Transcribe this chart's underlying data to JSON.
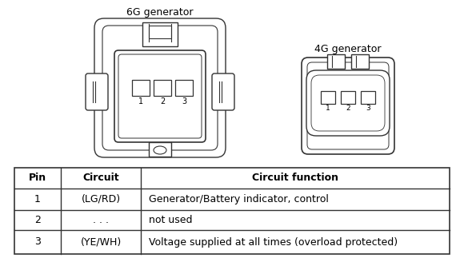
{
  "bg_color": "#ffffff",
  "label_6g": "6G generator",
  "label_4g": "4G generator",
  "table_headers": [
    "Pin",
    "Circuit",
    "Circuit function"
  ],
  "table_rows": [
    [
      "1",
      "(LG/RD)",
      "Generator/Battery indicator, control"
    ],
    [
      "2",
      ". . .",
      "not used"
    ],
    [
      "3",
      "(YE/WH)",
      "Voltage supplied at all times (overload protected)"
    ]
  ],
  "fig_width": 5.8,
  "fig_height": 3.28,
  "dpi": 100,
  "ec": "#333333"
}
